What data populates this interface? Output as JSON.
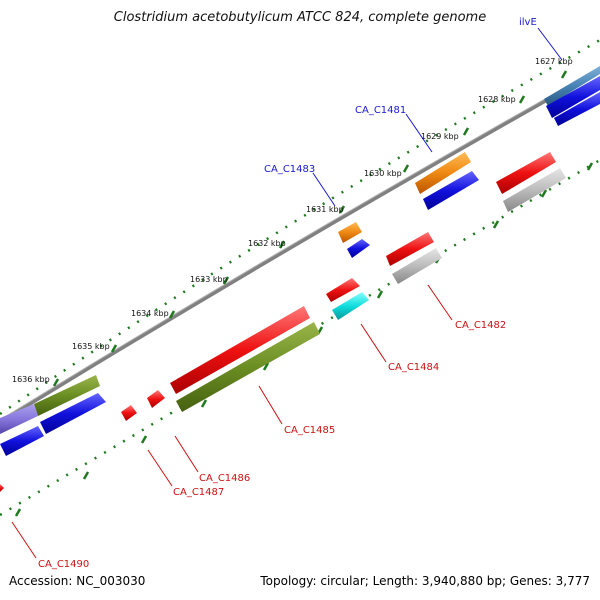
{
  "header": {
    "title": "Clostridium acetobutylicum ATCC 824, complete genome"
  },
  "footer": {
    "accession": "Accession: NC_003030",
    "summary": "Topology: circular; Length: 3,940,880 bp; Genes: 3,777"
  },
  "colors": {
    "backbone": "#808080",
    "tick": "#1f7a1f",
    "label_forward": "#1a1acc",
    "label_reverse": "#cc1111",
    "red": "#ee1111",
    "blue": "#1111dd",
    "orange": "#ee8811",
    "olive": "#6b8e23",
    "gray": "#bbbbbb",
    "cyan": "#11dddd",
    "lavender": "#8877dd",
    "steel": "#4682b4"
  },
  "ruler": {
    "ticks": [
      {
        "label": "1627 kbp"
      },
      {
        "label": "1628 kbp"
      },
      {
        "label": "1629 kbp"
      },
      {
        "label": "1630 kbp"
      },
      {
        "label": "1631 kbp"
      },
      {
        "label": "1632 kbp"
      },
      {
        "label": "1633 kbp"
      },
      {
        "label": "1634 kbp"
      },
      {
        "label": "1635 kbp"
      },
      {
        "label": "1636 kbp"
      }
    ]
  },
  "gene_labels": [
    {
      "name": "ilvE",
      "strand": "forward"
    },
    {
      "name": "CA_C1481",
      "strand": "forward"
    },
    {
      "name": "CA_C1483",
      "strand": "forward"
    },
    {
      "name": "CA_C1482",
      "strand": "reverse"
    },
    {
      "name": "CA_C1484",
      "strand": "reverse"
    },
    {
      "name": "CA_C1485",
      "strand": "reverse"
    },
    {
      "name": "CA_C1486",
      "strand": "reverse"
    },
    {
      "name": "CA_C1487",
      "strand": "reverse"
    },
    {
      "name": "CA_C1490",
      "strand": "reverse"
    }
  ],
  "features": [
    {
      "track": "outer",
      "color": "steel"
    },
    {
      "track": "outer",
      "color": "orange"
    },
    {
      "track": "outer",
      "color": "orange"
    },
    {
      "track": "outer",
      "color": "olive"
    },
    {
      "track": "outer",
      "color": "lavender"
    },
    {
      "track": "inner",
      "color": "blue"
    },
    {
      "track": "inner",
      "color": "red"
    },
    {
      "track": "inner",
      "color": "red"
    },
    {
      "track": "inner",
      "color": "red"
    },
    {
      "track": "inner",
      "color": "red"
    },
    {
      "track": "inner",
      "color": "red"
    },
    {
      "track": "inner",
      "color": "red"
    }
  ]
}
